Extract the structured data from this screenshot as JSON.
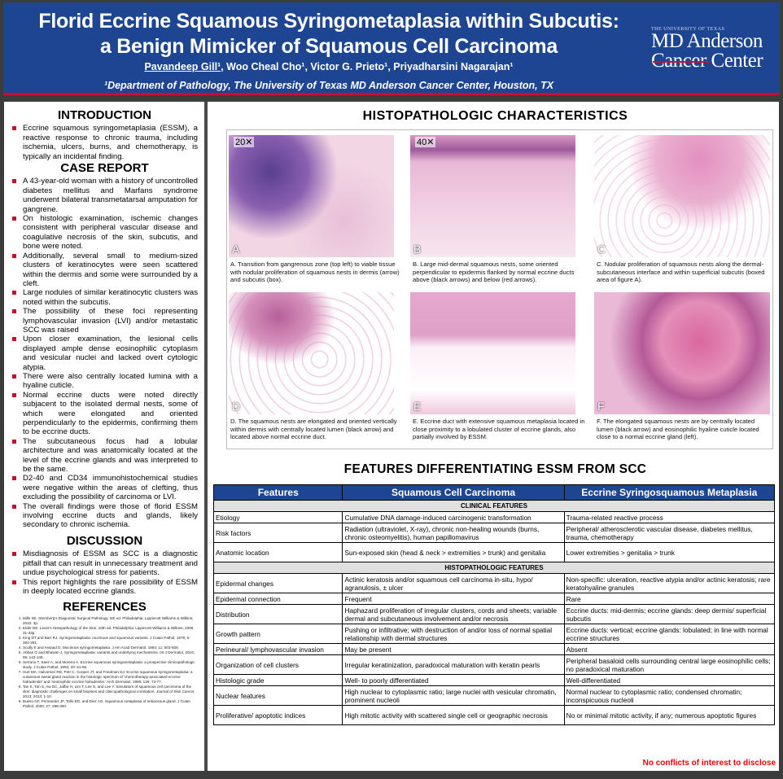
{
  "header": {
    "title_line1": "Florid Eccrine Squamous Syringometaplasia within Subcutis:",
    "title_line2": "a Benign Mimicker of Squamous Cell Carcinoma",
    "first_author": "Pavandeep Gill¹",
    "other_authors": ", Woo Cheal Cho¹, Victor G. Prieto¹, Priyadharsini Nagarajan¹",
    "affiliation": "¹Department of Pathology, The University of Texas MD Anderson Cancer Center, Houston, TX",
    "logo": {
      "small": "THE UNIVERSITY OF TEXAS",
      "line1": "MD Anderson",
      "line2": "Cancer Center"
    },
    "colors": {
      "header": "#1d4592",
      "accent": "#c8102e"
    }
  },
  "introduction": {
    "heading": "INTRODUCTION",
    "items": [
      "Eccrine squamous syringometaplasia (ESSM), a reactive response to chronic trauma, including ischemia, ulcers, burns, and chemotherapy, is typically an incidental finding."
    ]
  },
  "case_report": {
    "heading": "CASE REPORT",
    "items": [
      "A 43-year-old woman with a history of uncontrolled diabetes mellitus and Marfans syndrome underwent bilateral transmetatarsal amputation for gangrene.",
      "On histologic examination, ischemic changes consistent with peripheral vascular disease and coagulative necrosis of the skin, subcutis, and bone were noted.",
      "Additionally, several small to medium-sized clusters of keratinocytes were seen scattered within the dermis and some were surrounded by a cleft.",
      "Large nodules of similar keratinocytic clusters was noted within the subcutis.",
      "The possibility of these foci representing lymphovascular invasion (LVI) and/or metastatic SCC was raised",
      "Upon closer examination, the lesional cells displayed ample dense eosinophilic cytoplasm and vesicular nuclei and lacked overt cytologic atypia.",
      "There were also centrally located lumina with a hyaline cuticle.",
      "Normal eccrine ducts were noted directly subjacent to the isolated dermal nests, some of which were elongated and oriented perpendicularly to the epidermis, confirming them to be eccrine ducts.",
      "The subcutaneous focus had a lobular architecture and was anatomically located at the level of the eccrine glands and was interpreted to be the same.",
      "D2-40 and CD34 immunohistochemical studies were negative within the areas of clefting, thus excluding the possibility of carcinoma or LVI.",
      "The overall findings were those of florid ESSM involving eccrine ducts and glands, likely secondary to chronic ischemia."
    ]
  },
  "discussion": {
    "heading": "DISCUSSION",
    "items": [
      "Misdiagnosis of ESSM as SCC is a diagnostic pitfall that can result in unnecessary treatment and undue psychological stress for patients.",
      "This report highlights the rare possibility of ESSM in deeply located eccrine glands."
    ]
  },
  "references": {
    "heading": "REFERENCES",
    "items": [
      "Mills SE. Sternberg's Diagnostic Surgical Pathology. 5th ed. Philadelphia: Lippincott Williams & Wilkins; 2010. 3p.",
      "Elder DE. Lever's Histopathology of the Skin. 10th ed. Philadelphia: Lippincott Williams & Wilkins; 2009. 31-33p.",
      "King DT and Barr RJ. Syringometaplasia: mucinous and squamous variants. J Cutan Pathol, 1979; 6: 284-291.",
      "Scully K and Assaad D. Mucinous syringometaplasia. J Am Acad Dermatol, 1984; 11: 503-508.",
      "Abbas O and Bhawan J. Syringometaplasia: variants and underlying mechanisms. Int J Dermatol, 2016; 55: 142-148.",
      "Serrano T, Saez A, and Moreno A. Eccrine squamous syringometaplasia: a prospective clinicopathologic study. J Cutan Pathol, 1993; 20: 61-65.",
      "Hurt MA, Halvorson RD, Petr C, Cooper JT, and Friedman DJ. Eccrine squamous syringometaplasia: a cutaneous sweat gland reaction in the histologic spectrum of 'chemotherapy-associated eccrine hidradenitis' and 'neutrophilic eccrine hidradenitis.' Arch Dermatol, 1990; 126: 73-77.",
      "Tan K, Tan S, Aw DC, Jaffar H, Lim T, Lee S, and Lee Y. Simulators of squamous cell carcinoma of the skin: diagnostic challenges on small biopsies and clinicopathological correlation. Journal of Skin Cancer, 2013; 2013: 1-10.",
      "Bueso GF, Fernandez JF, Tello ED, and Diez AG. Squamous metaplasia of sebaceous gland. J Cutan Pathol, 2000; 27: 298-300."
    ]
  },
  "histo": {
    "heading": "HISTOPATHOLOGIC CHARACTERISTICS",
    "figures": [
      {
        "label": "A",
        "mag": "20✕",
        "caption": "A. Transition from gangrenous zone (top left) to viable tissue with nodular proliferation of squamous nests in dermis (arrow) and subcutis (box)."
      },
      {
        "label": "B",
        "mag": "40✕",
        "caption": "B. Large mid-dermal squamous nests, some oriented perpendicular to epidermis flanked by normal eccrine ducts above (black arrows) and below (red arrows)."
      },
      {
        "label": "C",
        "caption": "C. Nodular proliferation of squamous nests along the dermal-subcutaneous interface and within superficial subcutis (boxed area of figure A)."
      },
      {
        "label": "D",
        "caption": "D. The squamous nests are elongated and oriented vertically within dermis with centrally located lumen (black arrow) and located above normal eccrine duct."
      },
      {
        "label": "E",
        "caption": "E. Eccrine duct with extensive squamous metaplasia located in close proximity to a lobulated cluster of eccrine glands, also partially involved by ESSM."
      },
      {
        "label": "F",
        "caption": "F.  The elongated squamous nests are by centrally located lumen (black arrow) and eosinophilic hyaline cuticle located close to a normal eccrine gland (left)."
      }
    ]
  },
  "features": {
    "heading": "FEATURES DIFFERENTIATING ESSM FROM SCC",
    "columns": [
      "Features",
      "Squamous Cell Carcinoma",
      "Eccrine Syringosquamous Metaplasia"
    ],
    "sections": [
      {
        "title": "CLINICAL FEATURES",
        "rows": [
          [
            "Etiology",
            "Cumulative DNA damage-induced carcinogenic transformation",
            "Trauma-related reactive process"
          ],
          [
            "Risk factors",
            "Radiation (ultraviolet, X-ray), chronic non-healing wounds (burns, chronic osteomyelitis), human papillomavirus",
            "Peripheral/ atherosclerotic vascular disease, diabetes mellitus, trauma, chemotherapy"
          ],
          [
            "Anatomic location",
            "Sun-exposed skin (head & neck > extremities > trunk) and genitalia",
            "Lower extremities > genitalia > trunk"
          ]
        ]
      },
      {
        "title": "HISTOPATHOLOGIC FEATURES",
        "rows": [
          [
            "Epidermal changes",
            "Actinic keratosis and/or squamous cell carcinoma in-situ, hypo/ agranulosis, ± ulcer",
            "Non-specific: ulceration, reactive atypia and/or actinic keratosis; rare keratohyaline granules"
          ],
          [
            "Epidermal connection",
            "Frequent",
            "Rare"
          ],
          [
            "Distribution",
            "Haphazard proliferation of irregular clusters, cords and sheets; variable dermal and subcutaneous involvement and/or necrosis",
            "Eccrine ducts: mid-dermis; eccrine glands: deep dermis/ superficial subcutis"
          ],
          [
            "Growth pattern",
            "Pushing or infiltrative; with destruction of and/or loss of normal spatial relationship with dermal structures",
            "Eccrine ducts: vertical; eccrine glands: lobulated; in line with normal eccrine structures"
          ],
          [
            "Perineural/ lymphovascular invasion",
            "May be present",
            "Absent"
          ],
          [
            "Organization of cell clusters",
            "Irregular keratinization, paradoxical maturation with keratin pearls",
            "Peripheral basaloid cells surrounding central large eosinophilic cells; no paradoxical maturation"
          ],
          [
            "Histologic grade",
            "Well- to poorly differentiated",
            "Well-differentiated"
          ],
          [
            "Nuclear features",
            "High nuclear to cytoplasmic ratio; large nuclei with vesicular chromatin, prominent nucleoli",
            "Normal nuclear to cytoplasmic ratio; condensed chromatin; inconspicuous nucleoli"
          ],
          [
            "Proliferative/ apoptotic indices",
            "High mitotic activity with scattered single cell or geographic necrosis",
            "No or minimal mitotic activity, if any; numerous apoptotic figures"
          ]
        ]
      }
    ]
  },
  "footer": {
    "coi": "No conflicts of interest to disclose"
  }
}
